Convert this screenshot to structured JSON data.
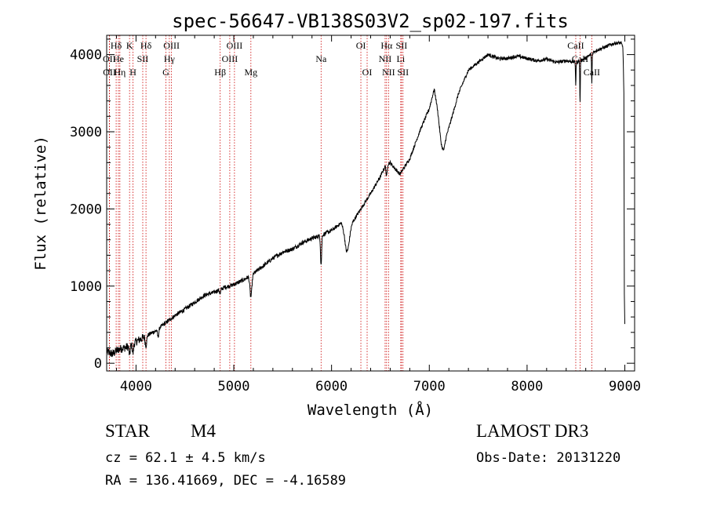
{
  "chart_data": {
    "type": "line",
    "title": "spec-56647-VB138S03V2_sp02-197.fits",
    "xlabel": "Wavelength (Å)",
    "ylabel": "Flux (relative)",
    "xlim": [
      3700,
      9100
    ],
    "ylim": [
      -100,
      4250
    ],
    "x_ticks": [
      4000,
      5000,
      6000,
      7000,
      8000,
      9000
    ],
    "x_tick_labels": [
      "4000",
      "5000",
      "6000",
      "7000",
      "8000",
      "9000"
    ],
    "y_ticks": [
      0,
      1000,
      2000,
      3000,
      4000
    ],
    "y_tick_labels": [
      "0",
      "1000",
      "2000",
      "3000",
      "4000"
    ],
    "series": [
      {
        "name": "spectrum",
        "color": "#000000",
        "anchors": [
          [
            3700,
            150
          ],
          [
            3760,
            120
          ],
          [
            3820,
            180
          ],
          [
            3880,
            200
          ],
          [
            3950,
            230
          ],
          [
            4000,
            280
          ],
          [
            4100,
            350
          ],
          [
            4200,
            420
          ],
          [
            4300,
            520
          ],
          [
            4400,
            620
          ],
          [
            4500,
            700
          ],
          [
            4600,
            790
          ],
          [
            4700,
            880
          ],
          [
            4800,
            920
          ],
          [
            4900,
            980
          ],
          [
            5000,
            1020
          ],
          [
            5100,
            1080
          ],
          [
            5200,
            1160
          ],
          [
            5300,
            1260
          ],
          [
            5400,
            1360
          ],
          [
            5500,
            1440
          ],
          [
            5600,
            1480
          ],
          [
            5700,
            1560
          ],
          [
            5800,
            1620
          ],
          [
            5900,
            1660
          ],
          [
            6000,
            1720
          ],
          [
            6100,
            1820
          ],
          [
            6150,
            1650
          ],
          [
            6200,
            1800
          ],
          [
            6300,
            2000
          ],
          [
            6400,
            2200
          ],
          [
            6500,
            2420
          ],
          [
            6550,
            2560
          ],
          [
            6600,
            2600
          ],
          [
            6650,
            2520
          ],
          [
            6700,
            2450
          ],
          [
            6800,
            2650
          ],
          [
            6900,
            3000
          ],
          [
            7000,
            3300
          ],
          [
            7050,
            3550
          ],
          [
            7100,
            3200
          ],
          [
            7150,
            2860
          ],
          [
            7200,
            3050
          ],
          [
            7300,
            3500
          ],
          [
            7400,
            3800
          ],
          [
            7500,
            3900
          ],
          [
            7600,
            4000
          ],
          [
            7700,
            3950
          ],
          [
            7800,
            3950
          ],
          [
            7900,
            3980
          ],
          [
            8000,
            3950
          ],
          [
            8100,
            3920
          ],
          [
            8200,
            3940
          ],
          [
            8300,
            3900
          ],
          [
            8400,
            3920
          ],
          [
            8500,
            3900
          ],
          [
            8600,
            3950
          ],
          [
            8700,
            4050
          ],
          [
            8800,
            4100
          ],
          [
            8900,
            4150
          ],
          [
            8960,
            4150
          ],
          [
            8980,
            4100
          ],
          [
            8990,
            3500
          ],
          [
            8995,
            900
          ],
          [
            9000,
            500
          ]
        ],
        "dips": [
          [
            3934,
            120,
            8
          ],
          [
            3969,
            120,
            8
          ],
          [
            4102,
            130,
            10
          ],
          [
            4226,
            100,
            10
          ],
          [
            4861,
            60,
            8
          ],
          [
            5175,
            280,
            14
          ],
          [
            5893,
            380,
            8
          ],
          [
            6163,
            230,
            30
          ],
          [
            6563,
            150,
            8
          ],
          [
            7125,
            200,
            30
          ],
          [
            8498,
            300,
            4
          ],
          [
            8542,
            560,
            4
          ],
          [
            8662,
            400,
            4
          ]
        ]
      }
    ],
    "line_markers": [
      {
        "label": "Hδ",
        "wl": 3797,
        "row": 1
      },
      {
        "label": "OII",
        "wl": 3727,
        "row": 2
      },
      {
        "label": "OII",
        "wl": 3729,
        "row": 3
      },
      {
        "label": "He",
        "wl": 3820,
        "row": 2
      },
      {
        "label": "Hη",
        "wl": 3835,
        "row": 3
      },
      {
        "label": "K",
        "wl": 3934,
        "row": 1
      },
      {
        "label": "SII",
        "wl": 4069,
        "row": 2
      },
      {
        "label": "H",
        "wl": 3969,
        "row": 3
      },
      {
        "label": "Hδ",
        "wl": 4102,
        "row": 1
      },
      {
        "label": "OIII",
        "wl": 4363,
        "row": 1
      },
      {
        "label": "Hγ",
        "wl": 4341,
        "row": 2
      },
      {
        "label": "G",
        "wl": 4305,
        "row": 3
      },
      {
        "label": "Hβ",
        "wl": 4861,
        "row": 3
      },
      {
        "label": "OIII",
        "wl": 4959,
        "row": 2
      },
      {
        "label": "OIII",
        "wl": 5007,
        "row": 1
      },
      {
        "label": "Mg",
        "wl": 5175,
        "row": 3
      },
      {
        "label": "Na",
        "wl": 5893,
        "row": 2
      },
      {
        "label": "OI",
        "wl": 6300,
        "row": 1
      },
      {
        "label": "OI",
        "wl": 6364,
        "row": 3
      },
      {
        "label": "Hα",
        "wl": 6563,
        "row": 1
      },
      {
        "label": "NII",
        "wl": 6548,
        "row": 2
      },
      {
        "label": "NII",
        "wl": 6583,
        "row": 3
      },
      {
        "label": "SII",
        "wl": 6716,
        "row": 1
      },
      {
        "label": "Li",
        "wl": 6708,
        "row": 2
      },
      {
        "label": "SII",
        "wl": 6731,
        "row": 3
      },
      {
        "label": "CaII",
        "wl": 8498,
        "row": 1
      },
      {
        "label": "CaII",
        "wl": 8542,
        "row": 2
      },
      {
        "label": "CaII",
        "wl": 8662,
        "row": 3
      }
    ]
  },
  "info": {
    "object_class": "STAR",
    "subclass": "M4",
    "survey": "LAMOST DR3",
    "redshift_line": "cz = 62.1 ± 4.5 km/s",
    "obs_date_line": "Obs-Date: 20131220",
    "coords_line": "RA = 136.41669, DEC =  -4.16589"
  },
  "colors": {
    "spectrum": "#000000",
    "marker_line": "#cc0000",
    "axes": "#000000"
  }
}
